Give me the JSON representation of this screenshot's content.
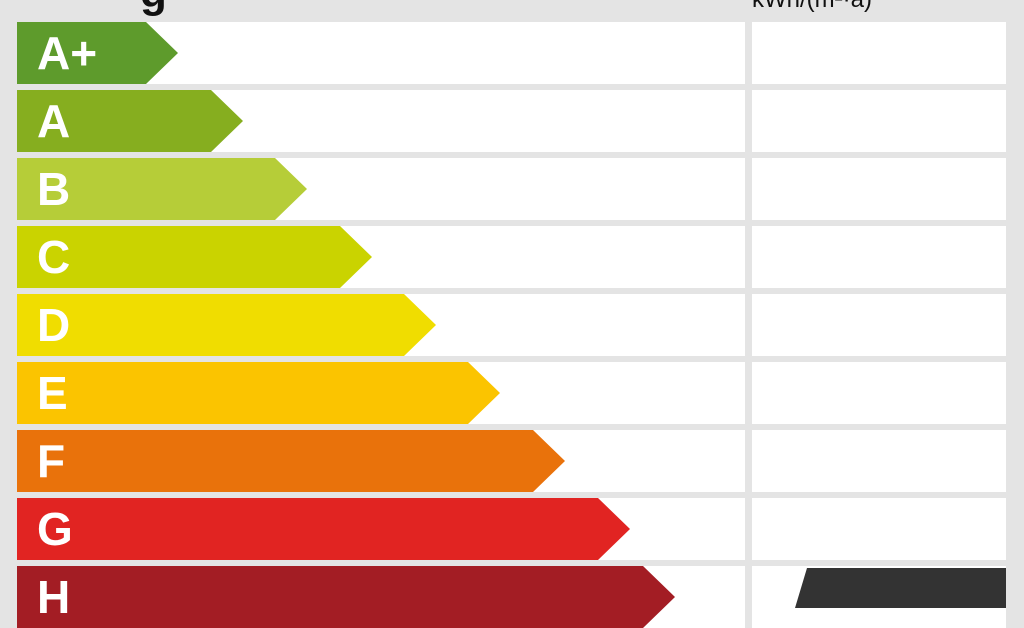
{
  "header": {
    "left_fragment": "g",
    "unit": "kWh/(m²·a)"
  },
  "classes": [
    {
      "label": "A+",
      "color": "#5e9b2c"
    },
    {
      "label": "A",
      "color": "#86ae1f"
    },
    {
      "label": "B",
      "color": "#b6cd38"
    },
    {
      "label": "C",
      "color": "#cad300"
    },
    {
      "label": "D",
      "color": "#f0dd00"
    },
    {
      "label": "E",
      "color": "#fbc400"
    },
    {
      "label": "F",
      "color": "#e9720b"
    },
    {
      "label": "G",
      "color": "#e12422"
    },
    {
      "label": "H",
      "color": "#a31d24"
    }
  ]
}
